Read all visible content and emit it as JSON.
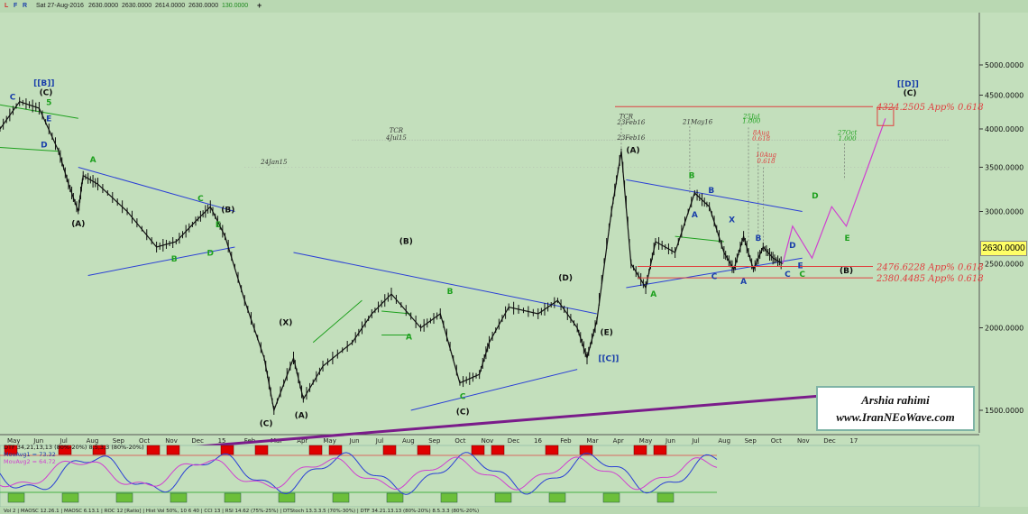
{
  "header": {
    "flags": [
      {
        "text": "L",
        "color": "#d03030"
      },
      {
        "text": "F",
        "color": "#1a3faa"
      },
      {
        "text": "R",
        "color": "#1a3faa"
      }
    ],
    "date": "Sat 27-Aug-2016",
    "open": "2630.0000",
    "high": "2630.0000",
    "low": "2614.0000",
    "close": "2630.0000",
    "change": "130.0000",
    "change_color": "#1e8a1e",
    "cross_icon": "cross-icon"
  },
  "signature": {
    "name": "Arshia rahimi",
    "url": "www.IranNEoWave.com"
  },
  "chart_data": {
    "type": "line",
    "price_axis": {
      "ticks": [
        5000,
        4500,
        4000,
        3500,
        3000,
        2500,
        2000,
        1500
      ],
      "tick_labels": [
        "5000.0000",
        "4500.0000",
        "4000.0000",
        "3500.0000",
        "3000.0000",
        "2500.0000",
        "2000.0000",
        "1500.0000"
      ],
      "current": "2630.0000"
    },
    "time_axis": [
      "May",
      "Jun",
      "Jul",
      "Aug",
      "Sep",
      "Oct",
      "Nov",
      "Dec",
      "15",
      "Feb",
      "Mar",
      "Apr",
      "May",
      "Jun",
      "Jul",
      "Aug",
      "Sep",
      "Oct",
      "Nov",
      "Dec",
      "16",
      "Feb",
      "Mar",
      "Apr",
      "May",
      "Jun",
      "Jul",
      "Aug",
      "Sep",
      "Oct",
      "Nov",
      "Dec",
      "17"
    ],
    "price_path": [
      [
        0.0,
        4000
      ],
      [
        0.02,
        4400
      ],
      [
        0.04,
        4300
      ],
      [
        0.06,
        3700
      ],
      [
        0.07,
        3300
      ],
      [
        0.08,
        3000
      ],
      [
        0.085,
        3400
      ],
      [
        0.1,
        3300
      ],
      [
        0.13,
        3000
      ],
      [
        0.16,
        2650
      ],
      [
        0.18,
        2700
      ],
      [
        0.2,
        2900
      ],
      [
        0.215,
        3050
      ],
      [
        0.23,
        2750
      ],
      [
        0.25,
        2200
      ],
      [
        0.27,
        1800
      ],
      [
        0.28,
        1500
      ],
      [
        0.3,
        1800
      ],
      [
        0.31,
        1560
      ],
      [
        0.33,
        1750
      ],
      [
        0.36,
        1900
      ],
      [
        0.38,
        2100
      ],
      [
        0.4,
        2250
      ],
      [
        0.43,
        2000
      ],
      [
        0.45,
        2100
      ],
      [
        0.47,
        1650
      ],
      [
        0.49,
        1700
      ],
      [
        0.5,
        1900
      ],
      [
        0.52,
        2150
      ],
      [
        0.55,
        2100
      ],
      [
        0.57,
        2200
      ],
      [
        0.59,
        2000
      ],
      [
        0.6,
        1800
      ],
      [
        0.61,
        2050
      ],
      [
        0.625,
        3000
      ],
      [
        0.635,
        3700
      ],
      [
        0.645,
        2500
      ],
      [
        0.66,
        2300
      ],
      [
        0.67,
        2700
      ],
      [
        0.69,
        2600
      ],
      [
        0.71,
        3200
      ],
      [
        0.725,
        3050
      ],
      [
        0.74,
        2600
      ],
      [
        0.75,
        2450
      ],
      [
        0.76,
        2750
      ],
      [
        0.77,
        2450
      ],
      [
        0.78,
        2650
      ],
      [
        0.79,
        2550
      ],
      [
        0.8,
        2500
      ]
    ],
    "channels": [
      {
        "color": "#2a3fd6",
        "points": [
          [
            0.08,
            3500
          ],
          [
            0.24,
            3000
          ]
        ]
      },
      {
        "color": "#2a3fd6",
        "points": [
          [
            0.09,
            2400
          ],
          [
            0.24,
            2650
          ]
        ]
      },
      {
        "color": "#2a3fd6",
        "points": [
          [
            0.3,
            2600
          ],
          [
            0.61,
            2100
          ]
        ]
      },
      {
        "color": "#2a3fd6",
        "points": [
          [
            0.42,
            1500
          ],
          [
            0.59,
            1730
          ]
        ]
      },
      {
        "color": "#2a3fd6",
        "points": [
          [
            0.64,
            3350
          ],
          [
            0.82,
            3000
          ]
        ]
      },
      {
        "color": "#2a3fd6",
        "points": [
          [
            0.64,
            2300
          ],
          [
            0.82,
            2550
          ]
        ]
      },
      {
        "color": "#1ea01e",
        "points": [
          [
            0.0,
            4350
          ],
          [
            0.08,
            4150
          ]
        ]
      },
      {
        "color": "#1ea01e",
        "points": [
          [
            0.0,
            3750
          ],
          [
            0.06,
            3700
          ]
        ]
      },
      {
        "color": "#1ea01e",
        "points": [
          [
            0.32,
            1900
          ],
          [
            0.37,
            2200
          ]
        ]
      },
      {
        "color": "#1ea01e",
        "points": [
          [
            0.39,
            2120
          ],
          [
            0.42,
            2100
          ]
        ]
      },
      {
        "color": "#1ea01e",
        "points": [
          [
            0.39,
            1950
          ],
          [
            0.42,
            1950
          ]
        ]
      },
      {
        "color": "#1ea01e",
        "points": [
          [
            0.69,
            2750
          ],
          [
            0.74,
            2700
          ]
        ]
      },
      {
        "color": "#7a1c8a",
        "points": [
          [
            0.0,
            1250
          ],
          [
            0.89,
            1600
          ]
        ],
        "width": 3
      }
    ],
    "projection": {
      "color": "#d040d0",
      "points": [
        [
          0.8,
          2500
        ],
        [
          0.81,
          2850
        ],
        [
          0.83,
          2550
        ],
        [
          0.85,
          3050
        ],
        [
          0.865,
          2850
        ],
        [
          0.89,
          3600
        ],
        [
          0.905,
          4150
        ]
      ]
    },
    "fib_levels": [
      {
        "value": 4324.2505,
        "label": "4324.2505 App% 0.618"
      },
      {
        "value": 2476.6228,
        "label": "2476.6228 App% 0.618"
      },
      {
        "value": 2380.4485,
        "label": "2380.4485 App% 0.618"
      }
    ],
    "wave_labels": [
      {
        "text": "[[B]]",
        "x": 0.045,
        "y": 4650,
        "color": "#1a3faa"
      },
      {
        "text": "(C)",
        "x": 0.047,
        "y": 4500,
        "color": "#111"
      },
      {
        "text": "C",
        "x": 0.013,
        "y": 4430,
        "color": "#1a3faa"
      },
      {
        "text": "5",
        "x": 0.05,
        "y": 4350,
        "color": "#1ea01e"
      },
      {
        "text": "E",
        "x": 0.05,
        "y": 4110,
        "color": "#1a3faa"
      },
      {
        "text": "D",
        "x": 0.045,
        "y": 3750,
        "color": "#1a3faa"
      },
      {
        "text": "A",
        "x": 0.095,
        "y": 3560,
        "color": "#1ea01e"
      },
      {
        "text": "(A)",
        "x": 0.08,
        "y": 2850,
        "color": "#111"
      },
      {
        "text": "C",
        "x": 0.205,
        "y": 3110,
        "color": "#1ea01e"
      },
      {
        "text": "(B)",
        "x": 0.233,
        "y": 2990,
        "color": "#111"
      },
      {
        "text": "E",
        "x": 0.223,
        "y": 2840,
        "color": "#1ea01e"
      },
      {
        "text": "D",
        "x": 0.215,
        "y": 2570,
        "color": "#1ea01e"
      },
      {
        "text": "B",
        "x": 0.178,
        "y": 2520,
        "color": "#1ea01e"
      },
      {
        "text": "24Jan15",
        "x": 0.28,
        "y": 3540,
        "color": "#333",
        "italic": true
      },
      {
        "text": "(X)",
        "x": 0.292,
        "y": 2020,
        "color": "#111"
      },
      {
        "text": "(C)",
        "x": 0.272,
        "y": 1420,
        "color": "#111"
      },
      {
        "text": "(A)",
        "x": 0.308,
        "y": 1460,
        "color": "#111"
      },
      {
        "text": "TCR",
        "x": 0.405,
        "y": 3950,
        "color": "#333",
        "italic": true
      },
      {
        "text": "4Jul15",
        "x": 0.405,
        "y": 3850,
        "color": "#333",
        "italic": true
      },
      {
        "text": "(B)",
        "x": 0.415,
        "y": 2680,
        "color": "#111"
      },
      {
        "text": "B",
        "x": 0.46,
        "y": 2250,
        "color": "#1ea01e"
      },
      {
        "text": "A",
        "x": 0.418,
        "y": 1920,
        "color": "#1ea01e"
      },
      {
        "text": "C",
        "x": 0.473,
        "y": 1560,
        "color": "#1ea01e"
      },
      {
        "text": "(C)",
        "x": 0.473,
        "y": 1480,
        "color": "#111"
      },
      {
        "text": "(D)",
        "x": 0.578,
        "y": 2360,
        "color": "#111"
      },
      {
        "text": "(E)",
        "x": 0.62,
        "y": 1950,
        "color": "#111"
      },
      {
        "text": "[[C]]",
        "x": 0.622,
        "y": 1780,
        "color": "#1a3faa"
      },
      {
        "text": "TCR",
        "x": 0.64,
        "y": 4150,
        "color": "#333",
        "italic": true
      },
      {
        "text": "23Feb16",
        "x": 0.645,
        "y": 4060,
        "color": "#333",
        "italic": true
      },
      {
        "text": "23Feb16",
        "x": 0.645,
        "y": 3850,
        "color": "#333",
        "italic": true
      },
      {
        "text": "(A)",
        "x": 0.647,
        "y": 3680,
        "color": "#111"
      },
      {
        "text": "21May16",
        "x": 0.713,
        "y": 4070,
        "color": "#333",
        "italic": true
      },
      {
        "text": "25Jul",
        "x": 0.768,
        "y": 4150,
        "color": "#1ea01e",
        "italic": true
      },
      {
        "text": "1.000",
        "x": 0.768,
        "y": 4080,
        "color": "#1ea01e",
        "italic": true
      },
      {
        "text": "8Aug",
        "x": 0.778,
        "y": 3920,
        "color": "#e04040",
        "italic": true
      },
      {
        "text": "0.618",
        "x": 0.778,
        "y": 3840,
        "color": "#e04040",
        "italic": true
      },
      {
        "text": "10Aug",
        "x": 0.783,
        "y": 3630,
        "color": "#e04040",
        "italic": true
      },
      {
        "text": "0.618",
        "x": 0.783,
        "y": 3550,
        "color": "#e04040",
        "italic": true
      },
      {
        "text": "27Oct",
        "x": 0.866,
        "y": 3920,
        "color": "#1ea01e",
        "italic": true
      },
      {
        "text": "1.000",
        "x": 0.866,
        "y": 3840,
        "color": "#1ea01e",
        "italic": true
      },
      {
        "text": "B",
        "x": 0.707,
        "y": 3370,
        "color": "#1ea01e"
      },
      {
        "text": "B",
        "x": 0.727,
        "y": 3200,
        "color": "#1a3faa"
      },
      {
        "text": "A",
        "x": 0.71,
        "y": 2940,
        "color": "#1a3faa"
      },
      {
        "text": "X",
        "x": 0.748,
        "y": 2890,
        "color": "#1a3faa"
      },
      {
        "text": "B",
        "x": 0.775,
        "y": 2710,
        "color": "#1a3faa"
      },
      {
        "text": "D",
        "x": 0.81,
        "y": 2640,
        "color": "#1a3faa"
      },
      {
        "text": "E",
        "x": 0.818,
        "y": 2460,
        "color": "#1a3faa"
      },
      {
        "text": "C",
        "x": 0.73,
        "y": 2370,
        "color": "#1a3faa"
      },
      {
        "text": "A",
        "x": 0.76,
        "y": 2330,
        "color": "#1a3faa"
      },
      {
        "text": "C",
        "x": 0.805,
        "y": 2390,
        "color": "#1a3faa"
      },
      {
        "text": "C",
        "x": 0.82,
        "y": 2390,
        "color": "#1ea01e"
      },
      {
        "text": "A",
        "x": 0.668,
        "y": 2230,
        "color": "#1ea01e"
      },
      {
        "text": "D",
        "x": 0.833,
        "y": 3140,
        "color": "#1ea01e"
      },
      {
        "text": "E",
        "x": 0.866,
        "y": 2710,
        "color": "#1ea01e"
      },
      {
        "text": "(B)",
        "x": 0.865,
        "y": 2420,
        "color": "#111"
      },
      {
        "text": "[[D]]",
        "x": 0.928,
        "y": 4640,
        "color": "#1a3faa"
      },
      {
        "text": "(C)",
        "x": 0.93,
        "y": 4490,
        "color": "#111"
      }
    ],
    "oscillator": {
      "legend": [
        {
          "text": "DTF 34,21,13,13 (80%-20%) 8,5,3,3 (80%-20%)",
          "color": "#111"
        },
        {
          "text": "MovAvg1 = 73.32",
          "color": "#1a3faa"
        },
        {
          "text": "MovAvg2 = 64.72",
          "color": "#d040d0"
        }
      ],
      "bottom_legend": "Vol 2 | MAOSC 12.26.1 | MAOSC 6.13.1 | ROC 12 [Ratio] | Hist Vol 50%, 10 6 40 | CCI 13 | RSI 14.62 (75%-25%) | DTStoch 13.3.3.5 (70%-30%) | DTF 34.21.13.13 (80%-20%) 8.5.3.3 (80%-20%)"
    }
  }
}
